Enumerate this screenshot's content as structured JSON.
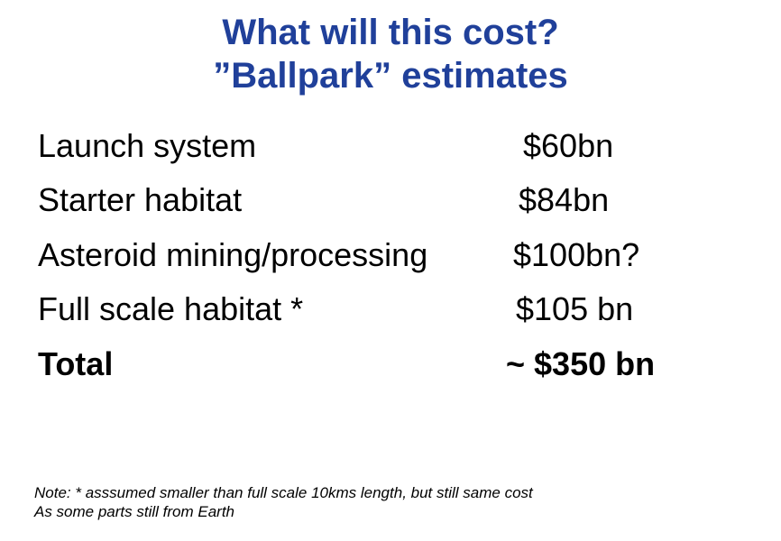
{
  "title": {
    "line1": "What will this cost?",
    "line2": "”Ballpark” estimates"
  },
  "items": [
    {
      "label": "Launch system",
      "amount": "$60bn"
    },
    {
      "label": "Starter habitat",
      "amount": "$84bn"
    },
    {
      "label": "Asteroid mining/processing",
      "amount": "$100bn?"
    },
    {
      "label": "Full scale habitat *",
      "amount": "$105 bn"
    }
  ],
  "total": {
    "label": "Total",
    "amount": "~ $350 bn"
  },
  "note": {
    "line1": "Note: * asssumed smaller than full scale 10kms length, but still same cost",
    "line2": "As some parts still from Earth"
  }
}
